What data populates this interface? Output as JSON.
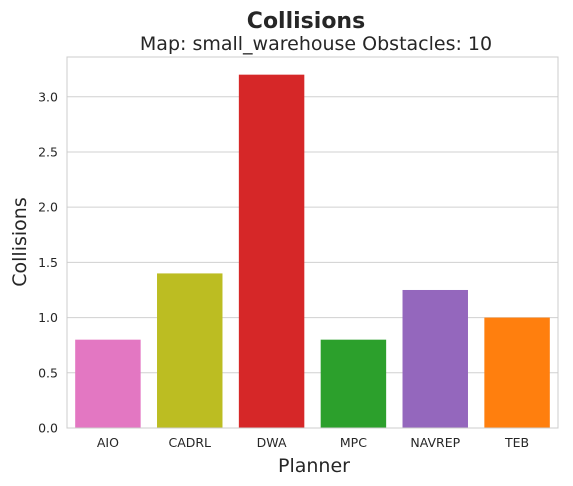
{
  "chart_data": {
    "type": "bar",
    "title": "Collisions",
    "subtitle": "Map: small_warehouse Obstacles: 10",
    "xlabel": "Planner",
    "ylabel": "Collisions",
    "categories": [
      "AIO",
      "CADRL",
      "DWA",
      "MPC",
      "NAVREP",
      "TEB"
    ],
    "values": [
      0.8,
      1.4,
      3.2,
      0.8,
      1.25,
      1.0
    ],
    "colors": [
      "#e377c2",
      "#bcbd22",
      "#d62728",
      "#2ca02c",
      "#9467bd",
      "#ff7f0e"
    ],
    "ylim": [
      0,
      3.36
    ],
    "yticks": [
      "0.0",
      "0.5",
      "1.0",
      "1.5",
      "2.0",
      "2.5",
      "3.0"
    ],
    "grid": "horizontal"
  }
}
